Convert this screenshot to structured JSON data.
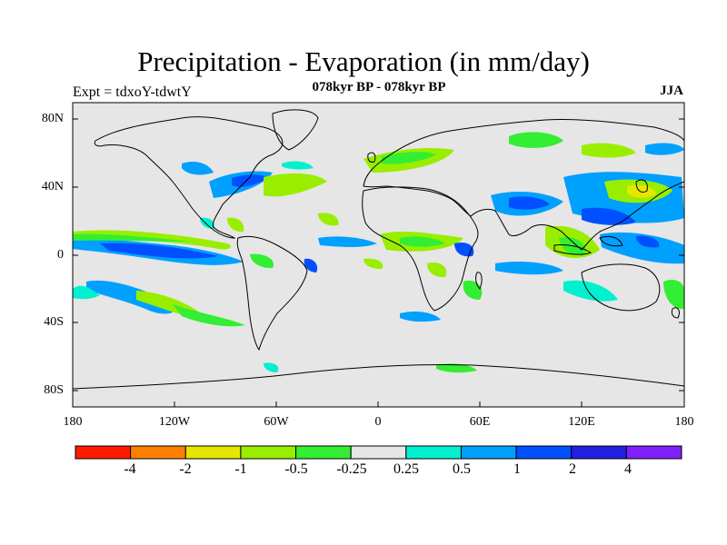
{
  "title": "Precipitation - Evaporation (in mm/day)",
  "subtitle": "078kyr BP - 078kyr BP",
  "experiment": "Expt = tdxoY-tdwtY",
  "season": "JJA",
  "lat_ticks": [
    "80N",
    "40N",
    "0",
    "40S",
    "80S"
  ],
  "lon_ticks": [
    "180",
    "120W",
    "60W",
    "0",
    "60E",
    "120E",
    "180"
  ],
  "colorbar": {
    "labels": [
      "-4",
      "-2",
      "-1",
      "-0.5",
      "-0.25",
      "0.25",
      "0.5",
      "1",
      "2",
      "4"
    ],
    "colors": [
      "#ff1a00",
      "#ff8000",
      "#e6e600",
      "#99ee00",
      "#33ee33",
      "#e6e6e6",
      "#00f0d0",
      "#00a0ff",
      "#0050ff",
      "#2020e0",
      "#8020ff"
    ]
  }
}
